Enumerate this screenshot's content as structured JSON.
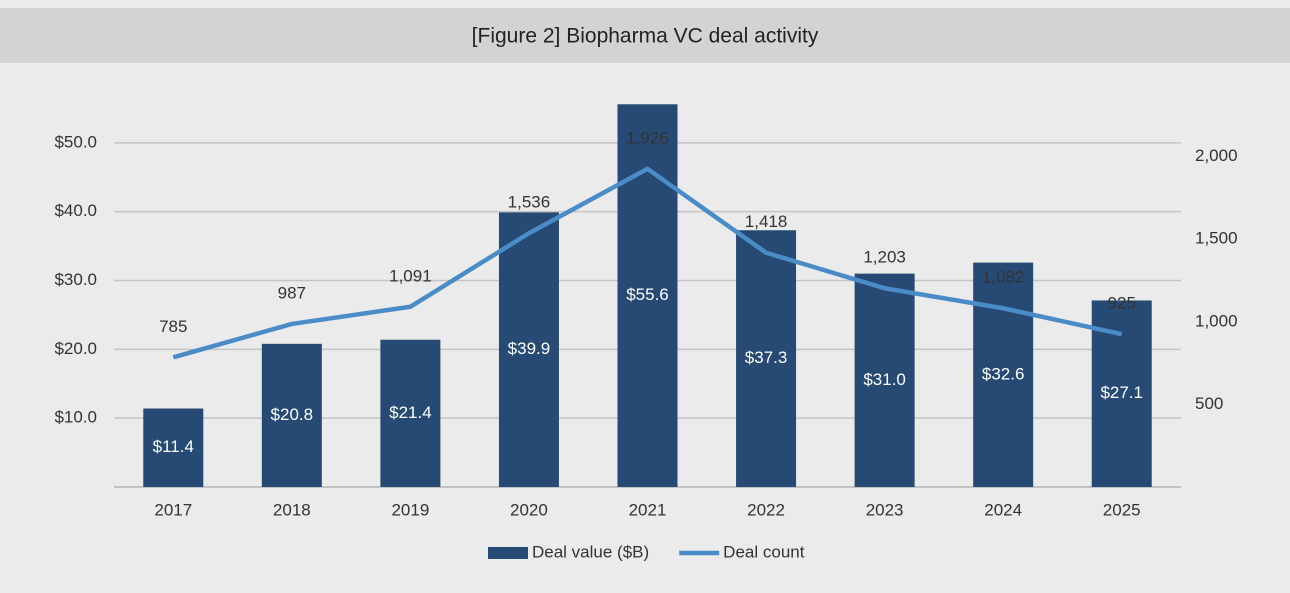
{
  "chart_data": {
    "type": "bar-line",
    "title": "[Figure 2] Biopharma VC deal activity",
    "categories": [
      "2017",
      "2018",
      "2019",
      "2020",
      "2021",
      "2022",
      "2023",
      "2024",
      "2025"
    ],
    "series": [
      {
        "name": "Deal value ($B)",
        "type": "bar",
        "color": "#264a73",
        "values": [
          11.4,
          20.8,
          21.4,
          39.9,
          55.6,
          37.3,
          31.0,
          32.6,
          27.1
        ],
        "value_labels": [
          "$11.4",
          "$20.8",
          "$21.4",
          "$39.9",
          "$55.6",
          "$37.3",
          "$31.0",
          "$32.6",
          "$27.1"
        ]
      },
      {
        "name": "Deal count",
        "type": "line",
        "axis": "y2",
        "color": "#4a8cc8",
        "values": [
          785,
          987,
          1091,
          1536,
          1926,
          1418,
          1203,
          1082,
          925
        ],
        "value_labels": [
          "785",
          "987",
          "1,091",
          "1,536",
          "1,926",
          "1,418",
          "1,203",
          "1,082",
          "925"
        ]
      }
    ],
    "ylim": [
      0,
      60
    ],
    "yticks": [
      {
        "value": 10,
        "label": "$10.0"
      },
      {
        "value": 20,
        "label": "$20.0"
      },
      {
        "value": 30,
        "label": "$30.0"
      },
      {
        "value": 40,
        "label": "$40.0"
      },
      {
        "value": 50,
        "label": "$50.0"
      }
    ],
    "y2lim": [
      0,
      2500
    ],
    "y2ticks": [
      500,
      {
        "value": 1000,
        "label": "1,000"
      },
      {
        "value": 1500,
        "label": "1,500"
      },
      {
        "value": 2000,
        "label": "2,000"
      }
    ],
    "grid": true
  }
}
